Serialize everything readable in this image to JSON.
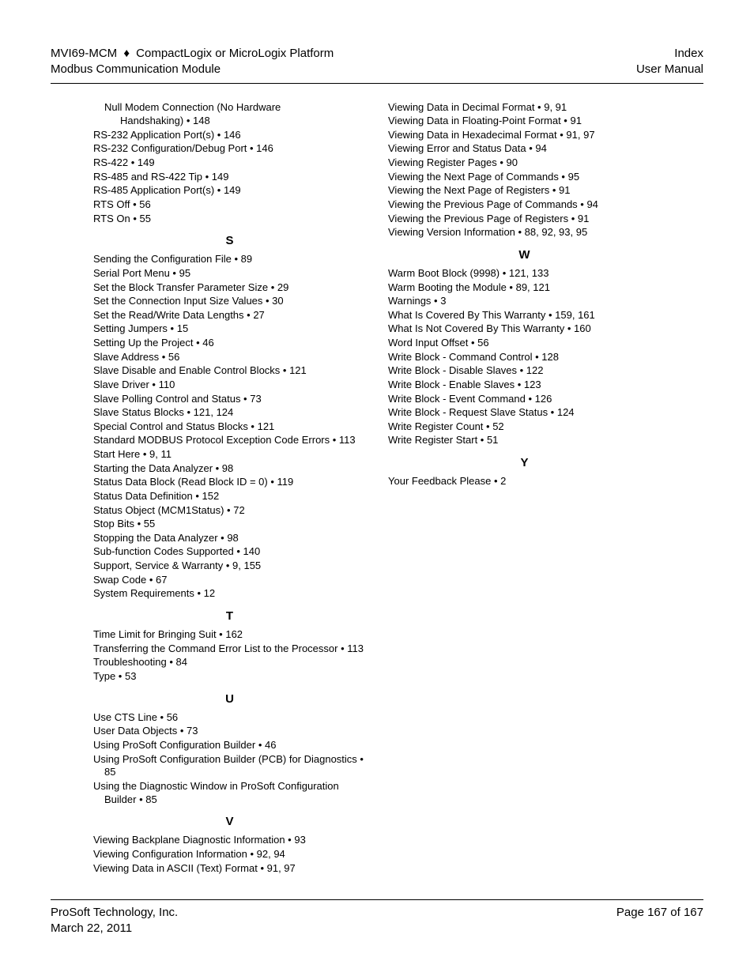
{
  "header": {
    "left1_a": "MVI69-MCM",
    "left1_b": "CompactLogix or MicroLogix Platform",
    "diamond": "♦",
    "left2": "Modbus Communication Module",
    "right1": "Index",
    "right2": "User Manual"
  },
  "footer": {
    "company": "ProSoft Technology, Inc.",
    "date": "March 22, 2011",
    "page": "Page 167 of 167"
  },
  "left_col": [
    {
      "type": "entry",
      "indent": 1,
      "text": "Null Modem Connection (No Hardware"
    },
    {
      "type": "entry",
      "indent": 2,
      "text": "Handshaking) • 148"
    },
    {
      "type": "entry",
      "text": "RS-232  Application Port(s) • 146"
    },
    {
      "type": "entry",
      "text": "RS-232 Configuration/Debug Port • 146"
    },
    {
      "type": "entry",
      "text": "RS-422 • 149"
    },
    {
      "type": "entry",
      "text": "RS-485 and RS-422 Tip • 149"
    },
    {
      "type": "entry",
      "text": "RS-485 Application Port(s) • 149"
    },
    {
      "type": "entry",
      "text": "RTS Off • 56"
    },
    {
      "type": "entry",
      "text": "RTS On • 55"
    },
    {
      "type": "head",
      "text": "S"
    },
    {
      "type": "entry",
      "text": "Sending the Configuration File • 89"
    },
    {
      "type": "entry",
      "text": "Serial Port Menu • 95"
    },
    {
      "type": "entry",
      "text": "Set the Block Transfer Parameter Size • 29"
    },
    {
      "type": "entry",
      "text": "Set the Connection Input Size Values • 30"
    },
    {
      "type": "entry",
      "text": "Set the Read/Write Data Lengths • 27"
    },
    {
      "type": "entry",
      "text": "Setting Jumpers • 15"
    },
    {
      "type": "entry",
      "text": "Setting Up the Project • 46"
    },
    {
      "type": "entry",
      "text": "Slave Address • 56"
    },
    {
      "type": "entry",
      "text": "Slave Disable and Enable Control Blocks • 121"
    },
    {
      "type": "entry",
      "text": "Slave Driver • 110"
    },
    {
      "type": "entry",
      "text": "Slave Polling Control and Status • 73"
    },
    {
      "type": "entry",
      "text": "Slave Status Blocks • 121, 124"
    },
    {
      "type": "entry",
      "text": "Special Control and Status Blocks • 121"
    },
    {
      "type": "entry",
      "text": "Standard MODBUS Protocol Exception Code Errors • 113"
    },
    {
      "type": "entry",
      "text": "Start Here • 9, 11"
    },
    {
      "type": "entry",
      "text": "Starting the Data Analyzer • 98"
    },
    {
      "type": "entry",
      "text": "Status Data Block (Read Block ID = 0) • 119"
    },
    {
      "type": "entry",
      "text": "Status Data Definition • 152"
    },
    {
      "type": "entry",
      "text": "Status Object (MCM1Status) • 72"
    },
    {
      "type": "entry",
      "text": "Stop Bits • 55"
    },
    {
      "type": "entry",
      "text": "Stopping the Data Analyzer • 98"
    },
    {
      "type": "entry",
      "text": "Sub-function Codes Supported • 140"
    },
    {
      "type": "entry",
      "text": "Support, Service & Warranty • 9, 155"
    },
    {
      "type": "entry",
      "text": "Swap Code • 67"
    },
    {
      "type": "entry",
      "text": "System Requirements • 12"
    },
    {
      "type": "head",
      "text": "T"
    },
    {
      "type": "entry",
      "text": "Time Limit for Bringing Suit • 162"
    },
    {
      "type": "entry",
      "text": "Transferring the Command Error List to the Processor • 113"
    },
    {
      "type": "entry",
      "text": "Troubleshooting • 84"
    },
    {
      "type": "entry",
      "text": "Type • 53"
    },
    {
      "type": "head",
      "text": "U"
    },
    {
      "type": "entry",
      "text": "Use CTS Line • 56"
    },
    {
      "type": "entry",
      "text": "User Data Objects • 73"
    },
    {
      "type": "entry",
      "text": "Using ProSoft Configuration Builder • 46"
    },
    {
      "type": "entry",
      "text": "Using ProSoft Configuration Builder (PCB) for Diagnostics • 85"
    },
    {
      "type": "entry",
      "text": "Using the Diagnostic Window in ProSoft Configuration Builder • 85"
    },
    {
      "type": "head",
      "text": "V"
    },
    {
      "type": "entry",
      "text": "Viewing Backplane Diagnostic Information • 93"
    },
    {
      "type": "entry",
      "text": "Viewing Configuration Information • 92, 94"
    },
    {
      "type": "entry",
      "text": "Viewing Data in ASCII (Text) Format • 91, 97"
    }
  ],
  "right_col": [
    {
      "type": "entry",
      "text": "Viewing Data in Decimal Format • 9, 91"
    },
    {
      "type": "entry",
      "text": "Viewing Data in Floating-Point Format • 91"
    },
    {
      "type": "entry",
      "text": "Viewing Data in Hexadecimal Format • 91, 97"
    },
    {
      "type": "entry",
      "text": "Viewing Error and Status Data • 94"
    },
    {
      "type": "entry",
      "text": "Viewing Register Pages • 90"
    },
    {
      "type": "entry",
      "text": "Viewing the Next Page of Commands • 95"
    },
    {
      "type": "entry",
      "text": "Viewing the Next Page of Registers • 91"
    },
    {
      "type": "entry",
      "text": "Viewing the Previous Page of Commands • 94"
    },
    {
      "type": "entry",
      "text": "Viewing the Previous Page of Registers • 91"
    },
    {
      "type": "entry",
      "text": "Viewing Version Information • 88, 92, 93, 95"
    },
    {
      "type": "head",
      "text": "W"
    },
    {
      "type": "entry",
      "text": "Warm Boot Block (9998) • 121, 133"
    },
    {
      "type": "entry",
      "text": "Warm Booting the Module • 89, 121"
    },
    {
      "type": "entry",
      "text": "Warnings • 3"
    },
    {
      "type": "entry",
      "text": "What Is Covered By This Warranty • 159, 161"
    },
    {
      "type": "entry",
      "text": "What Is Not Covered By This Warranty • 160"
    },
    {
      "type": "entry",
      "text": "Word Input Offset • 56"
    },
    {
      "type": "entry",
      "text": "Write Block - Command Control • 128"
    },
    {
      "type": "entry",
      "text": "Write Block - Disable Slaves • 122"
    },
    {
      "type": "entry",
      "text": "Write Block - Enable Slaves • 123"
    },
    {
      "type": "entry",
      "text": "Write Block - Event Command • 126"
    },
    {
      "type": "entry",
      "text": "Write Block - Request Slave Status • 124"
    },
    {
      "type": "entry",
      "text": "Write Register Count • 52"
    },
    {
      "type": "entry",
      "text": "Write Register Start • 51"
    },
    {
      "type": "head",
      "text": "Y"
    },
    {
      "type": "entry",
      "text": "Your Feedback Please • 2"
    }
  ]
}
